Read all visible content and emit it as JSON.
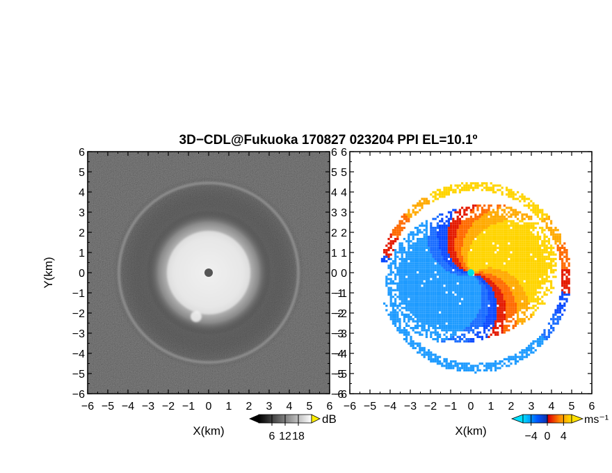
{
  "chart_data": [
    {
      "type": "heatmap",
      "panel": "reflectivity",
      "title": "3D−CDL@Fukuoka 170827 023204 PPI EL=10.1º",
      "xlabel": "X(km)",
      "ylabel": "Y(km)",
      "xlim": [
        -6,
        6
      ],
      "ylim": [
        -6,
        6
      ],
      "ticks": [
        "−6",
        "−5",
        "−4",
        "−3",
        "−2",
        "−1",
        "0",
        "1",
        "2",
        "3",
        "4",
        "5",
        "6"
      ],
      "colorbar": {
        "unit": "dB",
        "ticks": [
          "6",
          "12",
          "18"
        ],
        "range": [
          0,
          24
        ],
        "colors": [
          "#000000",
          "#ffffff"
        ]
      },
      "features": {
        "core_radius_km": 3.0,
        "ring_radius_km": 4.5,
        "eye_radius_km": 0.2
      }
    },
    {
      "type": "heatmap",
      "panel": "doppler_velocity",
      "xlabel": "X(km)",
      "ylabel": "",
      "xlim": [
        -6,
        6
      ],
      "ylim": [
        -6,
        6
      ],
      "ticks": [
        "−6",
        "−5",
        "−4",
        "−3",
        "−2",
        "−1",
        "0",
        "1",
        "2",
        "3",
        "4",
        "5",
        "6"
      ],
      "colorbar": {
        "unit": "ms⁻¹",
        "ticks": [
          "−4",
          "0",
          "4"
        ],
        "range": [
          -6,
          6
        ],
        "colors": [
          "#00d0ff",
          "#0055ff",
          "#dd0000",
          "#ff8800",
          "#ffe000"
        ]
      },
      "features": {
        "core_radius_km": 3.8,
        "outer_band_radius_km": 4.5,
        "center_marker_color": "#00e0e0"
      }
    }
  ]
}
